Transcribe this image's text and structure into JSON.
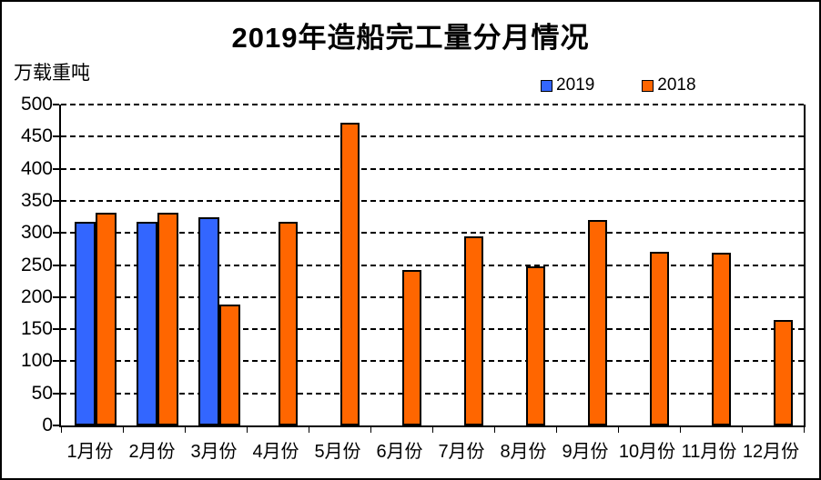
{
  "chart_data": {
    "type": "bar",
    "title": "2019年造船完工量分月情况",
    "ylabel": "万载重吨",
    "xlabel": "",
    "categories": [
      "1月份",
      "2月份",
      "3月份",
      "4月份",
      "5月份",
      "6月份",
      "7月份",
      "8月份",
      "9月份",
      "10月份",
      "11月份",
      "12月份"
    ],
    "series": [
      {
        "name": "2019",
        "color": "#3366FF",
        "values": [
          317,
          317,
          325,
          null,
          null,
          null,
          null,
          null,
          null,
          null,
          null,
          null
        ]
      },
      {
        "name": "2018",
        "color": "#FF6600",
        "values": [
          331,
          331,
          189,
          317,
          472,
          242,
          295,
          248,
          320,
          270,
          269,
          165
        ]
      }
    ],
    "ylim": [
      0,
      500
    ],
    "ytick_step": 50,
    "grid": "horizontal-dashed",
    "legend_position": "top-right-above-plot",
    "bar_border_color": "#000000",
    "background_color": "#FFFFFF"
  }
}
